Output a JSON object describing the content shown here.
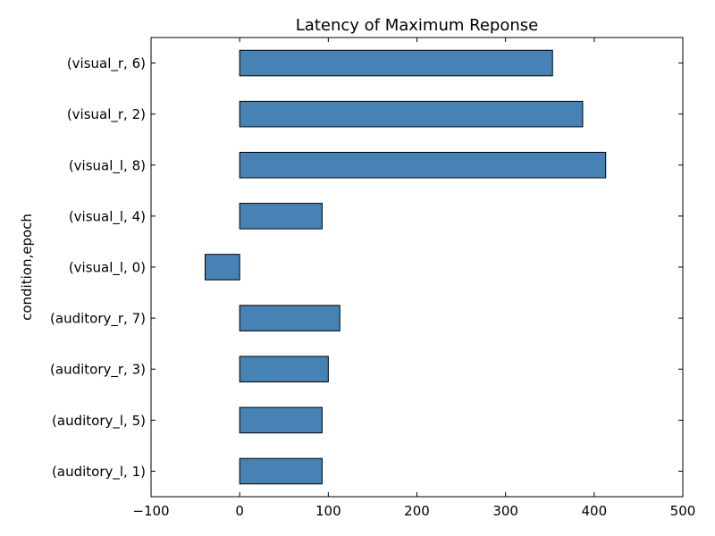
{
  "chart_data": {
    "type": "bar",
    "orientation": "horizontal",
    "title": "Latency of Maximum Reponse",
    "xlabel": "",
    "ylabel": "condition,epoch",
    "xlim": [
      -100,
      500
    ],
    "xticks": [
      -100,
      0,
      100,
      200,
      300,
      400,
      500
    ],
    "xtick_labels": [
      "−100",
      "0",
      "100",
      "200",
      "300",
      "400",
      "500"
    ],
    "categories": [
      "(auditory_l, 1)",
      "(auditory_l, 5)",
      "(auditory_r, 3)",
      "(auditory_r, 7)",
      "(visual_l, 0)",
      "(visual_l, 4)",
      "(visual_l, 8)",
      "(visual_r, 2)",
      "(visual_r, 6)"
    ],
    "values": [
      93,
      93,
      100,
      113,
      -39,
      93,
      413,
      387,
      353
    ],
    "bar_color": "#4682b4",
    "grid": false,
    "legend": "none"
  }
}
